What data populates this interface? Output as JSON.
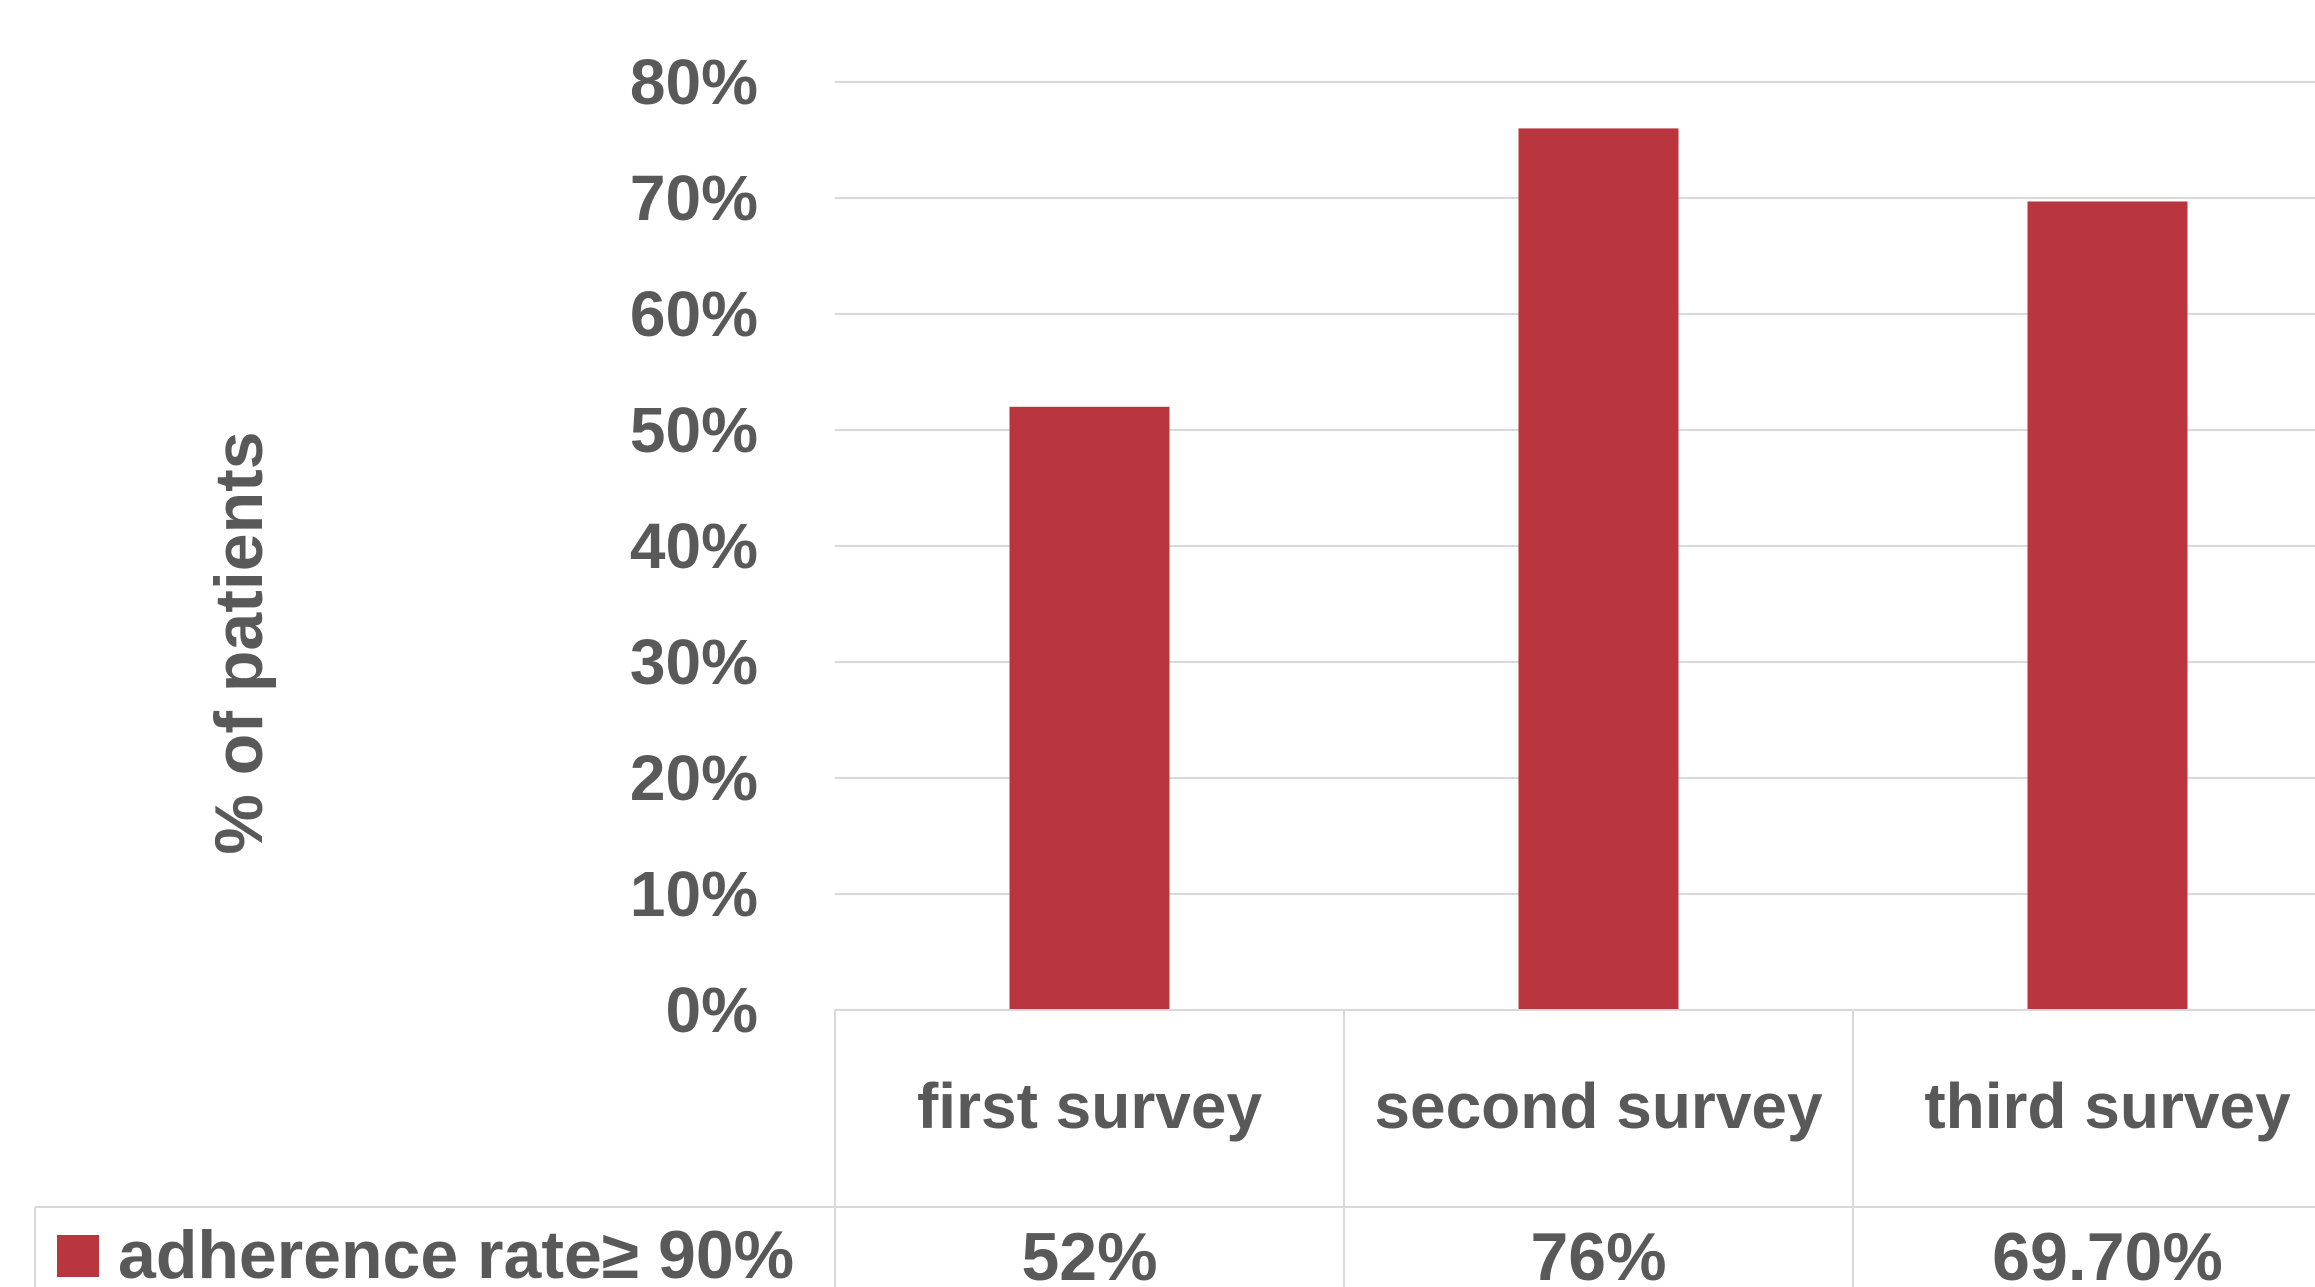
{
  "chart_data": {
    "type": "bar",
    "ylabel": "% of patients",
    "ylim": [
      0,
      80
    ],
    "y_ticks": [
      "0%",
      "10%",
      "20%",
      "30%",
      "40%",
      "50%",
      "60%",
      "70%",
      "80%"
    ],
    "categories": [
      "first survey",
      "second survey",
      "third survey"
    ],
    "series": [
      {
        "name": "adherence rate≥ 90%",
        "values": [
          52,
          76,
          69.7
        ],
        "labels": [
          "52%",
          "76%",
          "69.70%"
        ],
        "color": "#B9363F"
      }
    ],
    "grid": true,
    "legend": "data-table-bottom",
    "gridline_color": "#D9D9D9",
    "text_color": "#595959"
  }
}
